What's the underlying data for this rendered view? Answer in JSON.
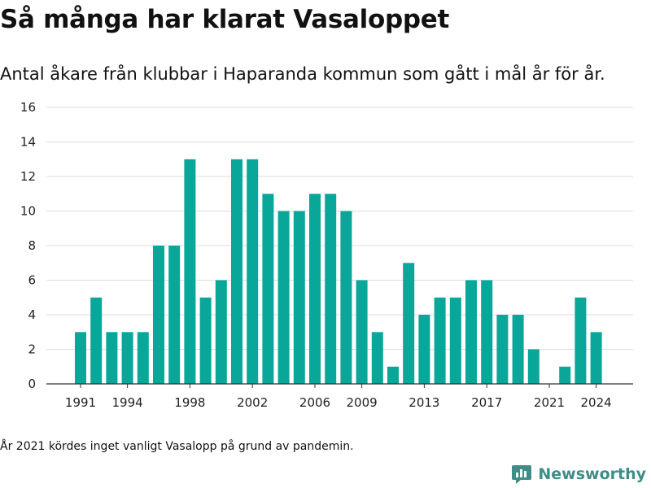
{
  "header": {
    "title": "Så många har klarat Vasaloppet",
    "subtitle": "Antal åkare från klubbar i Haparanda kommun som gått i mål år för år."
  },
  "footer": {
    "note": "År 2021 kördes inget vanligt Vasalopp på grund av pandemin.",
    "brand": "Newsworthy",
    "brand_icon": "bar-chart-speech-bubble-icon",
    "brand_color": "#3e8d87"
  },
  "chart_data": {
    "type": "bar",
    "title": "Så många har klarat Vasaloppet",
    "subtitle": "Antal åkare från klubbar i Haparanda kommun som gått i mål år för år.",
    "xlabel": "",
    "ylabel": "",
    "categories": [
      1991,
      1992,
      1993,
      1994,
      1995,
      1996,
      1997,
      1998,
      1999,
      2000,
      2001,
      2002,
      2003,
      2004,
      2005,
      2006,
      2007,
      2008,
      2009,
      2010,
      2011,
      2012,
      2013,
      2014,
      2015,
      2016,
      2017,
      2018,
      2019,
      2020,
      2021,
      2022,
      2023,
      2024
    ],
    "values": [
      3,
      5,
      3,
      3,
      3,
      8,
      8,
      13,
      5,
      6,
      13,
      13,
      11,
      10,
      10,
      11,
      11,
      10,
      6,
      3,
      1,
      7,
      4,
      5,
      5,
      6,
      6,
      4,
      4,
      2,
      0,
      1,
      5,
      3
    ],
    "x_tick_labels": [
      "1991",
      "1994",
      "1998",
      "2002",
      "2006",
      "2009",
      "2013",
      "2017",
      "2021",
      "2024"
    ],
    "y_ticks": [
      0,
      2,
      4,
      6,
      8,
      10,
      12,
      14,
      16
    ],
    "ylim": [
      0,
      16
    ],
    "grid": true,
    "legend": "none",
    "bar_color": "#09a799",
    "grid_color": "#dddddd",
    "axis_color": "#333333"
  }
}
